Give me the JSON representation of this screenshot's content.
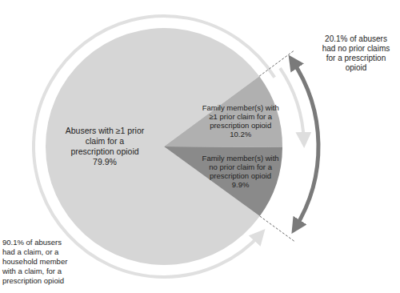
{
  "chart_data": {
    "type": "pie",
    "categories": [
      "Abusers with ≥1 prior claim for a prescription opioid",
      "Family member(s) with ≥1 prior claim for a prescription opioid",
      "Family member(s) with no prior claim for a prescription opioid"
    ],
    "values": [
      79.9,
      10.2,
      9.9
    ],
    "value_labels": [
      "79.9%",
      "10.2%",
      "9.9%"
    ],
    "colors": [
      "#d6d6d6",
      "#b0b0b0",
      "#8a8a8a"
    ],
    "data_labels": true,
    "annotations": [
      "90.1% of abusers had a claim, or a household member with a claim, for a prescription opioid",
      "20.1% of abusers had no prior claims for a prescription opioid"
    ]
  }
}
